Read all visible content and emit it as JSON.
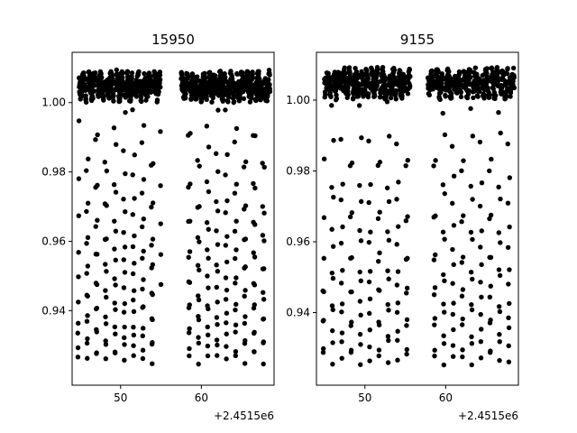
{
  "chart_data": [
    {
      "type": "scatter",
      "title": "15950",
      "x_offset_label": "+2.4515e6",
      "xlim": [
        44.0,
        69.0
      ],
      "ylim": [
        0.9185,
        1.0145
      ],
      "x_ticks": [
        50,
        60
      ],
      "x_tick_labels": [
        "50",
        "60"
      ],
      "y_ticks": [
        0.94,
        0.96,
        0.98,
        1.0
      ],
      "y_tick_labels": [
        "0.94",
        "0.96",
        "0.98",
        "1.00"
      ],
      "marker_color": "#000000",
      "segments": [
        [
          44.7,
          55.0
        ],
        [
          57.5,
          68.5
        ]
      ],
      "eclipse_period": 1.148,
      "eclipse_first": 45.87,
      "eclipse_min": 0.925,
      "baseline": 1.003,
      "baseline_top": 1.01
    },
    {
      "type": "scatter",
      "title": "9155",
      "x_offset_label": "+2.4515e6",
      "xlim": [
        44.0,
        69.0
      ],
      "ylim": [
        0.9195,
        1.0135
      ],
      "x_ticks": [
        50,
        60
      ],
      "x_tick_labels": [
        "50",
        "60"
      ],
      "y_ticks": [
        0.94,
        0.96,
        0.98,
        1.0
      ],
      "y_tick_labels": [
        "0.94",
        "0.96",
        "0.98",
        "1.00"
      ],
      "marker_color": "#000000",
      "segments": [
        [
          44.8,
          55.6
        ],
        [
          57.8,
          68.5
        ]
      ],
      "eclipse_period": 1.148,
      "eclipse_first": 46.0,
      "eclipse_min": 0.925,
      "baseline": 1.003,
      "baseline_top": 1.01
    }
  ]
}
